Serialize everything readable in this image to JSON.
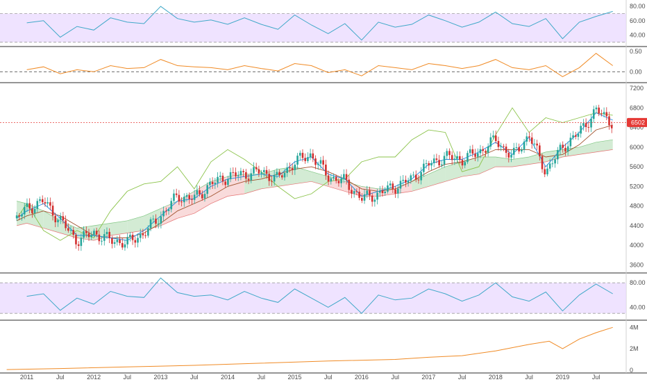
{
  "chart_data": {
    "type": "line",
    "x_ticks": [
      "2011",
      "Jul",
      "2012",
      "Jul",
      "2013",
      "Jul",
      "2014",
      "Jul",
      "2015",
      "Jul",
      "2016",
      "Jul",
      "2017",
      "Jul",
      "2018",
      "Jul",
      "2019",
      "Jul"
    ],
    "current_price_label": "6502",
    "colors": {
      "rsi_line": "#3fa8c8",
      "rsi_band": "#ead9ff",
      "osc_line": "#f08a24",
      "candle_up": "#26a69a",
      "candle_down": "#d32f2f",
      "price_line": "#e53935",
      "cloud_green": "#c8e6c9",
      "cloud_red": "#f8d2d2",
      "lagging_span": "#8bc34a",
      "base_line": "#a0522d",
      "conversion_line": "#1e88e5",
      "volume_line": "#f08a24"
    },
    "panels": [
      {
        "name": "rsi-top",
        "ticks": [
          "80.00",
          "60.00",
          "40.00"
        ],
        "ylim": [
          25,
          85
        ],
        "band": [
          30,
          70
        ],
        "x": [
          2011,
          2011.25,
          2011.5,
          2011.75,
          2012,
          2012.25,
          2012.5,
          2012.75,
          2013,
          2013.25,
          2013.5,
          2013.75,
          2014,
          2014.25,
          2014.5,
          2014.75,
          2015,
          2015.25,
          2015.5,
          2015.75,
          2016,
          2016.25,
          2016.5,
          2016.75,
          2017,
          2017.25,
          2017.5,
          2017.75,
          2018,
          2018.25,
          2018.5,
          2018.75,
          2019,
          2019.25,
          2019.5,
          2019.75
        ],
        "values": [
          57,
          60,
          37,
          52,
          47,
          64,
          58,
          56,
          80,
          63,
          58,
          61,
          55,
          64,
          55,
          48,
          68,
          54,
          42,
          56,
          33,
          58,
          51,
          55,
          68,
          60,
          51,
          58,
          72,
          56,
          52,
          63,
          35,
          58,
          66,
          73
        ]
      },
      {
        "name": "oscillator",
        "ticks": [
          "0.50",
          "0.00"
        ],
        "ylim": [
          -0.25,
          0.6
        ],
        "dashed_zero": true,
        "x": [
          2011,
          2011.25,
          2011.5,
          2011.75,
          2012,
          2012.25,
          2012.5,
          2012.75,
          2013,
          2013.25,
          2013.5,
          2013.75,
          2014,
          2014.25,
          2014.5,
          2014.75,
          2015,
          2015.25,
          2015.5,
          2015.75,
          2016,
          2016.25,
          2016.5,
          2016.75,
          2017,
          2017.25,
          2017.5,
          2017.75,
          2018,
          2018.25,
          2018.5,
          2018.75,
          2019,
          2019.25,
          2019.5,
          2019.75
        ],
        "values": [
          0.05,
          0.12,
          -0.05,
          0.05,
          0.0,
          0.15,
          0.08,
          0.1,
          0.3,
          0.15,
          0.12,
          0.1,
          0.05,
          0.15,
          0.08,
          0.02,
          0.2,
          0.15,
          -0.02,
          0.05,
          -0.1,
          0.15,
          0.1,
          0.05,
          0.2,
          0.15,
          0.08,
          0.15,
          0.3,
          0.1,
          0.05,
          0.15,
          -0.12,
          0.1,
          0.45,
          0.15
        ]
      },
      {
        "name": "price",
        "ticks": [
          "7200",
          "6800",
          "6400",
          "6000",
          "5600",
          "5200",
          "4800",
          "4400",
          "4000",
          "3600"
        ],
        "ylim": [
          3450,
          7300
        ],
        "current_price": 6502,
        "x": [
          2010.85,
          2011,
          2011.25,
          2011.5,
          2011.75,
          2012,
          2012.25,
          2012.5,
          2012.75,
          2013,
          2013.25,
          2013.5,
          2013.75,
          2014,
          2014.25,
          2014.5,
          2014.75,
          2015,
          2015.25,
          2015.5,
          2015.75,
          2016,
          2016.25,
          2016.5,
          2016.75,
          2017,
          2017.25,
          2017.5,
          2017.75,
          2018,
          2018.25,
          2018.5,
          2018.75,
          2019,
          2019.25,
          2019.5,
          2019.75
        ],
        "values": [
          4550,
          4750,
          4900,
          4500,
          4100,
          4250,
          4100,
          4050,
          4250,
          4600,
          5000,
          4950,
          5250,
          5400,
          5450,
          5500,
          5350,
          5700,
          5850,
          5400,
          5300,
          4950,
          5050,
          5200,
          5350,
          5650,
          5800,
          5750,
          5900,
          6150,
          5800,
          6250,
          5500,
          6000,
          6300,
          6750,
          6502
        ],
        "cloud_upper": [
          4900,
          4850,
          4700,
          4500,
          4350,
          4400,
          4450,
          4500,
          4600,
          4750,
          4900,
          5100,
          5300,
          5400,
          5450,
          5450,
          5550,
          5600,
          5500,
          5400,
          5300,
          5200,
          5150,
          5150,
          5300,
          5450,
          5600,
          5700,
          5800,
          5800,
          5750,
          5800,
          5900,
          5950,
          6000,
          6100,
          6150
        ],
        "cloud_lower": [
          4400,
          4450,
          4350,
          4250,
          4150,
          4100,
          4200,
          4250,
          4300,
          4400,
          4550,
          4650,
          4850,
          5000,
          5050,
          5150,
          5200,
          5250,
          5300,
          5200,
          5100,
          5000,
          5000,
          5050,
          5100,
          5200,
          5300,
          5400,
          5450,
          5600,
          5600,
          5650,
          5700,
          5800,
          5850,
          5900,
          5950
        ],
        "lagging_span": [
          4550,
          4850,
          4300,
          4100,
          4300,
          4150,
          4700,
          5100,
          5250,
          5300,
          5600,
          5150,
          5700,
          5950,
          5750,
          5500,
          5200,
          4950,
          5050,
          5300,
          5350,
          5700,
          5800,
          5800,
          6150,
          6350,
          6300,
          5500,
          5600,
          6250,
          6800,
          6300,
          6600,
          6500,
          6600,
          6700,
          6650
        ],
        "base_line": [
          4500,
          4600,
          4700,
          4600,
          4400,
          4200,
          4150,
          4150,
          4250,
          4450,
          4700,
          4850,
          5000,
          5200,
          5300,
          5350,
          5450,
          5550,
          5600,
          5500,
          5350,
          5150,
          5100,
          5150,
          5300,
          5500,
          5650,
          5700,
          5800,
          5950,
          5950,
          5950,
          5800,
          5850,
          6050,
          6350,
          6450
        ],
        "conversion_line": [
          4550,
          4700,
          4850,
          4550,
          4200,
          4200,
          4150,
          4100,
          4300,
          4600,
          4900,
          4950,
          5200,
          5350,
          5400,
          5450,
          5400,
          5700,
          5800,
          5450,
          5350,
          5000,
          5100,
          5200,
          5350,
          5650,
          5750,
          5750,
          5900,
          6100,
          5850,
          6200,
          5600,
          6000,
          6300,
          6700,
          6550
        ]
      },
      {
        "name": "rsi-bottom",
        "ticks": [
          "80.00",
          "40.00"
        ],
        "ylim": [
          20,
          95
        ],
        "band": [
          30,
          80
        ],
        "x": [
          2011,
          2011.25,
          2011.5,
          2011.75,
          2012,
          2012.25,
          2012.5,
          2012.75,
          2013,
          2013.25,
          2013.5,
          2013.75,
          2014,
          2014.25,
          2014.5,
          2014.75,
          2015,
          2015.25,
          2015.5,
          2015.75,
          2016,
          2016.25,
          2016.5,
          2016.75,
          2017,
          2017.25,
          2017.5,
          2017.75,
          2018,
          2018.25,
          2018.5,
          2018.75,
          2019,
          2019.25,
          2019.5,
          2019.75
        ],
        "values": [
          58,
          62,
          35,
          55,
          45,
          66,
          58,
          56,
          88,
          64,
          58,
          60,
          52,
          66,
          55,
          48,
          70,
          55,
          40,
          56,
          30,
          60,
          52,
          55,
          70,
          62,
          50,
          60,
          80,
          57,
          50,
          65,
          34,
          60,
          78,
          62
        ]
      },
      {
        "name": "volume",
        "ticks": [
          "4M",
          "2M",
          "0"
        ],
        "ylim": [
          -200000,
          4600000
        ],
        "x": [
          2010.7,
          2011.5,
          2012.5,
          2013.5,
          2014.5,
          2015.5,
          2016.5,
          2017.0,
          2017.5,
          2018.0,
          2018.5,
          2018.8,
          2019.0,
          2019.25,
          2019.5,
          2019.75
        ],
        "values": [
          50000,
          150000,
          300000,
          450000,
          650000,
          850000,
          1000000,
          1200000,
          1350000,
          1800000,
          2400000,
          2700000,
          2000000,
          2900000,
          3500000,
          4000000
        ]
      }
    ]
  }
}
